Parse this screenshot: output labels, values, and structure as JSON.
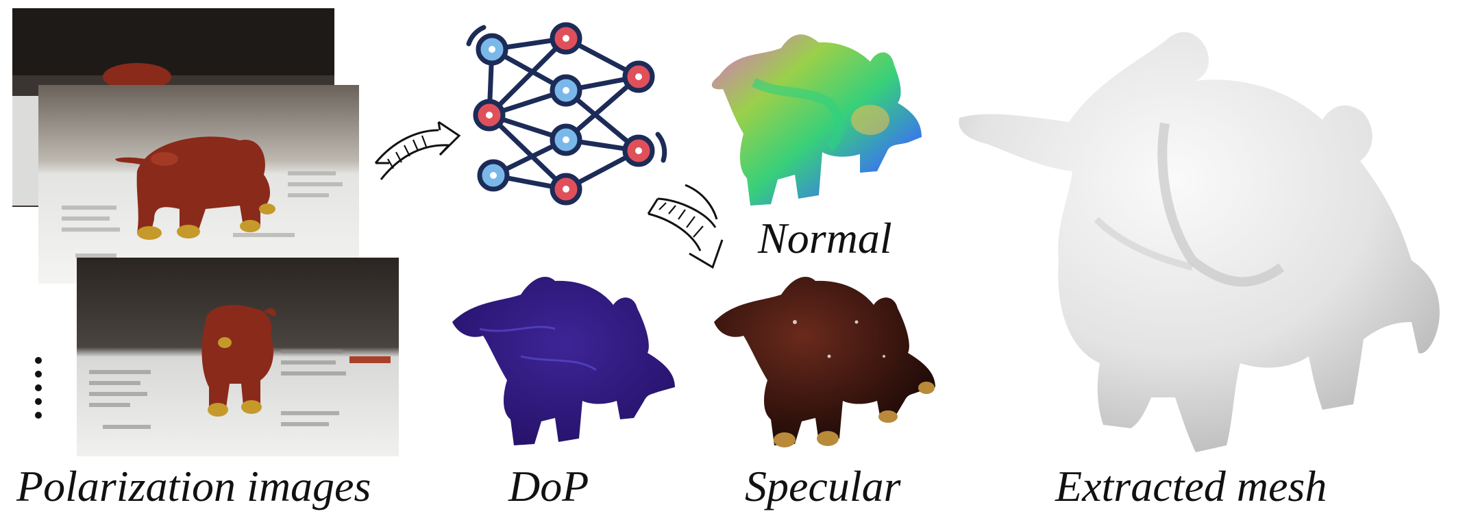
{
  "captions": {
    "polarization": "Polarization images",
    "dop": "DoP",
    "specular": "Specular",
    "normal": "Normal",
    "mesh": "Extracted mesh"
  },
  "colors": {
    "net_edge": "#1c2b57",
    "node_blue": "#7ab8ea",
    "node_red": "#e0505a",
    "bull_red": "#8a2a1a",
    "gold": "#c59a2a",
    "dop_purple": "#3a1c8a",
    "specular_dark": "#2a0f0a",
    "mesh_gray": "#e6e6e6"
  },
  "icons": [
    "neural-network-icon",
    "curved-arrow-icon",
    "down-arrow-icon",
    "vertical-ellipsis-icon"
  ]
}
